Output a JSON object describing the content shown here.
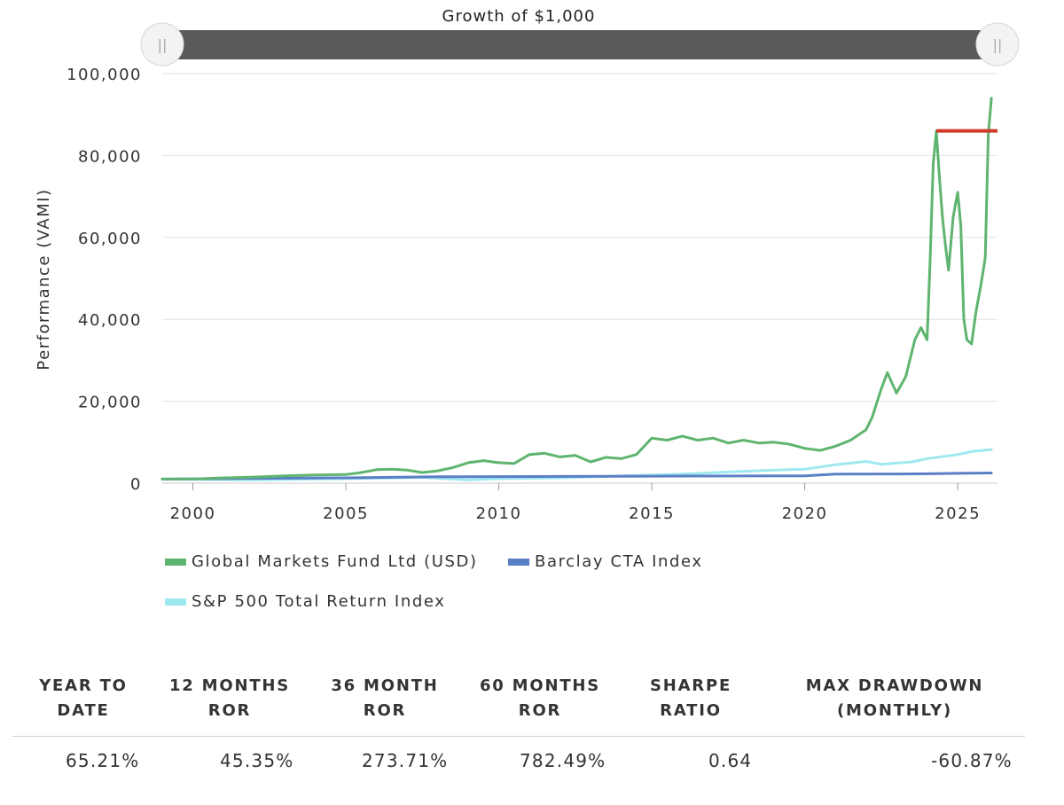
{
  "chart_data": {
    "type": "line",
    "title": "Growth of $1,000",
    "ylabel": "Performance (VAMI)",
    "xlabel": "",
    "ylim": [
      0,
      100000
    ],
    "xlim": [
      1999,
      2026.3
    ],
    "y_ticks": [
      0,
      20000,
      40000,
      60000,
      80000,
      100000
    ],
    "y_tick_labels": [
      "0",
      "20,000",
      "40,000",
      "60,000",
      "80,000",
      "100,000"
    ],
    "x_ticks": [
      2000,
      2005,
      2010,
      2015,
      2020,
      2025
    ],
    "x_tick_labels": [
      "2000",
      "2005",
      "2010",
      "2015",
      "2020",
      "2025"
    ],
    "grid": true,
    "legend_position": "bottom",
    "series": [
      {
        "name": "Global Markets Fund Ltd (USD)",
        "color": "#5fb56f",
        "x": [
          1999.0,
          2000.0,
          2001.0,
          2002.0,
          2003.0,
          2004.0,
          2005.0,
          2005.5,
          2006.0,
          2006.5,
          2007.0,
          2007.5,
          2008.0,
          2008.5,
          2009.0,
          2009.5,
          2010.0,
          2010.5,
          2011.0,
          2011.5,
          2012.0,
          2012.5,
          2013.0,
          2013.5,
          2014.0,
          2014.5,
          2015.0,
          2015.5,
          2016.0,
          2016.5,
          2017.0,
          2017.5,
          2018.0,
          2018.5,
          2019.0,
          2019.5,
          2020.0,
          2020.5,
          2021.0,
          2021.5,
          2022.0,
          2022.2,
          2022.5,
          2022.7,
          2023.0,
          2023.3,
          2023.6,
          2023.8,
          2024.0,
          2024.1,
          2024.2,
          2024.3,
          2024.4,
          2024.5,
          2024.6,
          2024.7,
          2024.85,
          2025.0,
          2025.1,
          2025.2,
          2025.3,
          2025.45,
          2025.6,
          2025.75,
          2025.9,
          2026.0,
          2026.1
        ],
        "values": [
          1000,
          1000,
          1300,
          1500,
          1800,
          2000,
          2100,
          2600,
          3300,
          3400,
          3200,
          2600,
          3000,
          3800,
          5000,
          5500,
          5000,
          4800,
          7000,
          7300,
          6400,
          6800,
          5200,
          6300,
          6000,
          7000,
          11000,
          10500,
          11500,
          10500,
          11000,
          9800,
          10500,
          9800,
          10000,
          9500,
          8500,
          8000,
          9000,
          10500,
          13000,
          16000,
          23000,
          27000,
          22000,
          26000,
          35000,
          38000,
          35000,
          55000,
          78000,
          86000,
          75000,
          65000,
          58000,
          52000,
          65000,
          71000,
          63000,
          40000,
          35000,
          34000,
          42000,
          48000,
          55000,
          85000,
          94000
        ]
      },
      {
        "name": "Barclay CTA Index",
        "color": "#5a7fc4",
        "x": [
          1999.0,
          2005.0,
          2008.0,
          2010.0,
          2015.0,
          2020.0,
          2021.0,
          2023.0,
          2024.0,
          2025.0,
          2026.1
        ],
        "values": [
          1000,
          1300,
          1550,
          1600,
          1700,
          1800,
          2200,
          2250,
          2300,
          2400,
          2500
        ]
      },
      {
        "name": "S&P 500 Total Return Index",
        "color": "#9ee8f0",
        "x": [
          1999.0,
          2002.0,
          2005.0,
          2007.5,
          2009.0,
          2010.0,
          2012.0,
          2014.0,
          2016.0,
          2018.0,
          2019.0,
          2020.0,
          2021.0,
          2022.0,
          2022.5,
          2023.5,
          2024.0,
          2025.0,
          2025.5,
          2026.1
        ],
        "values": [
          1000,
          800,
          1100,
          1400,
          800,
          1100,
          1300,
          1800,
          2200,
          2900,
          3200,
          3400,
          4500,
          5300,
          4600,
          5200,
          6000,
          7000,
          7800,
          8200
        ]
      }
    ],
    "reference_line": {
      "color": "#d03a2a",
      "x_range": [
        2024.3,
        2026.3
      ],
      "value": 86000
    }
  },
  "slider": {
    "left_handle_icon": "||",
    "right_handle_icon": "||"
  },
  "metrics": [
    {
      "label_line1": "YEAR TO",
      "label_line2": "DATE",
      "value": "65.21%"
    },
    {
      "label_line1": "12 MONTHS",
      "label_line2": "ROR",
      "value": "45.35%"
    },
    {
      "label_line1": "36 MONTH",
      "label_line2": "ROR",
      "value": "273.71%"
    },
    {
      "label_line1": "60 MONTHS",
      "label_line2": "ROR",
      "value": "782.49%"
    },
    {
      "label_line1": "SHARPE",
      "label_line2": "RATIO",
      "value": "0.64"
    },
    {
      "label_line1": "MAX DRAWDOWN",
      "label_line2": "(MONTHLY)",
      "value": "-60.87%"
    }
  ]
}
